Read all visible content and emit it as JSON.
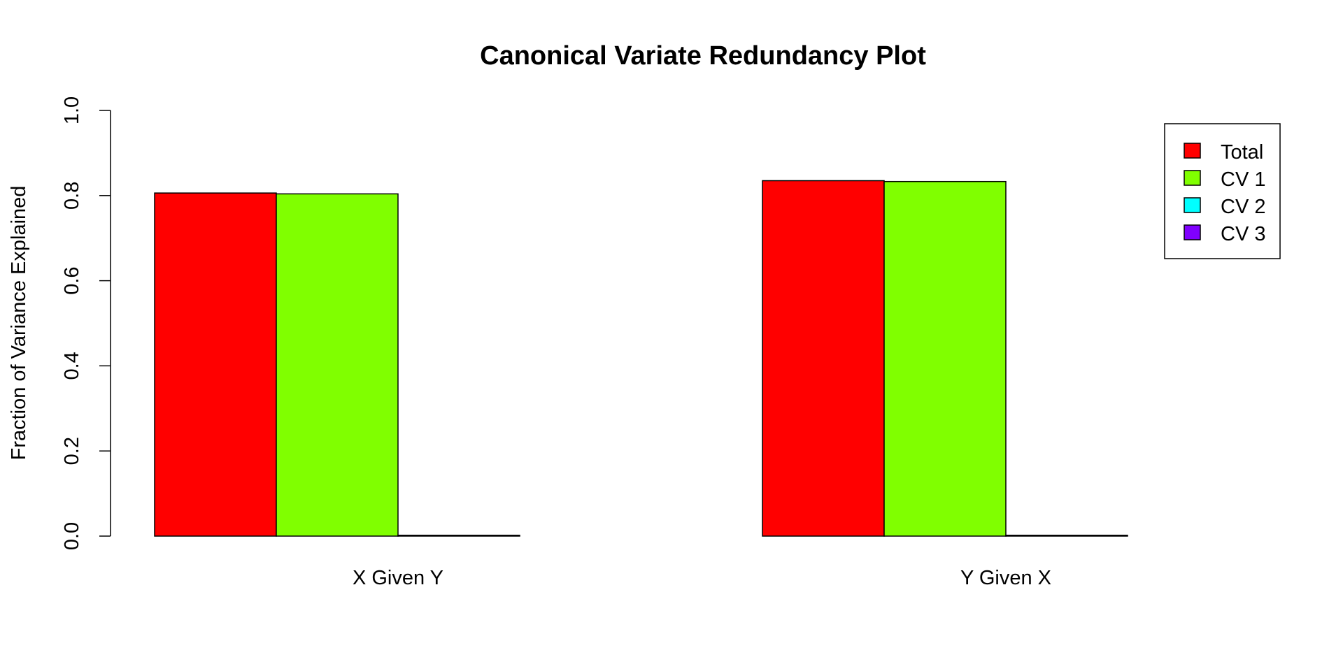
{
  "chart_data": {
    "type": "bar",
    "title": "Canonical Variate Redundancy Plot",
    "xlabel": "",
    "ylabel": "Fraction of Variance Explained",
    "ylim": [
      0,
      1.0
    ],
    "yticks": [
      "0.0",
      "0.2",
      "0.4",
      "0.6",
      "0.8",
      "1.0"
    ],
    "categories": [
      "X Given Y",
      "Y Given X"
    ],
    "series": [
      {
        "name": "Total",
        "color": "#ff0000",
        "values": [
          0.806,
          0.835
        ]
      },
      {
        "name": "CV 1",
        "color": "#80ff00",
        "values": [
          0.804,
          0.833
        ]
      },
      {
        "name": "CV 2",
        "color": "#00ffff",
        "values": [
          0.002,
          0.002
        ]
      },
      {
        "name": "CV 3",
        "color": "#8000ff",
        "values": [
          0.0,
          0.0
        ]
      }
    ],
    "grid": false,
    "legend_position": "top-right"
  }
}
